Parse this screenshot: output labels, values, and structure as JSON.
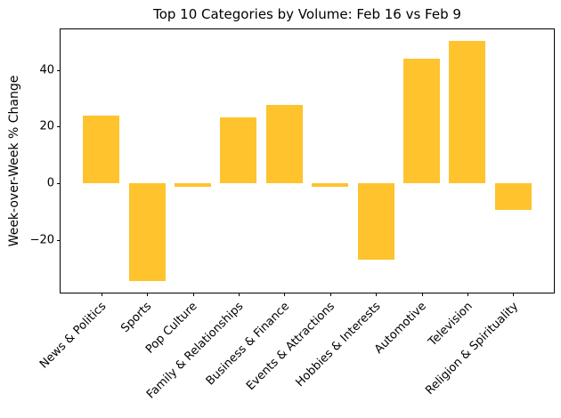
{
  "chart_data": {
    "type": "bar",
    "title": "Top 10 Categories by Volume: Feb 16 vs Feb 9",
    "ylabel": "Week-over-Week % Change",
    "xlabel": "",
    "categories": [
      "News & Politics",
      "Sports",
      "Pop Culture",
      "Family & Relationships",
      "Business & Finance",
      "Events & Attractions",
      "Hobbies & Interests",
      "Automotive",
      "Television",
      "Religion & Spirituality"
    ],
    "values": [
      23.9,
      -34.3,
      -1.1,
      23.3,
      27.8,
      -1.3,
      -26.9,
      44.1,
      50.2,
      -9.5
    ],
    "bar_color": "#FEC32D",
    "axis_color": "#000000",
    "ylim": [
      -38.5,
      54.3
    ],
    "yticks": [
      -20,
      0,
      20,
      40
    ],
    "ytick_labels": [
      "−20",
      "0",
      "20",
      "40"
    ],
    "xtick_rotation": 45,
    "grid": false,
    "legend": false
  }
}
